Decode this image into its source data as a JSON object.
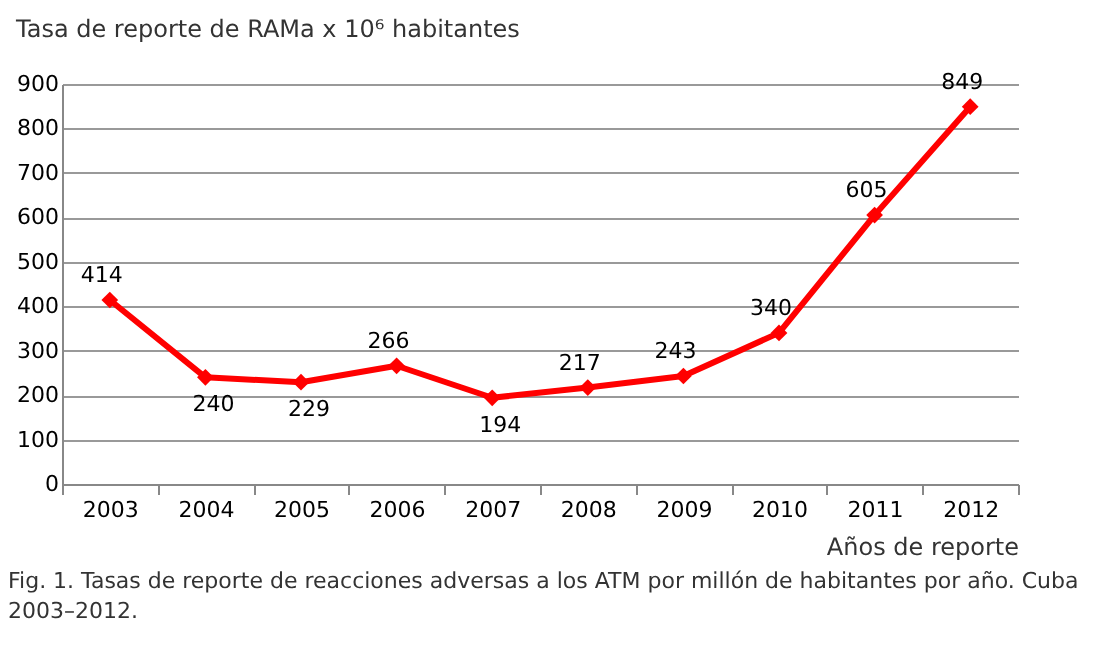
{
  "chart_data": {
    "type": "line",
    "ylabel": "Tasa de reporte de RAMa x 10⁶ habitantes",
    "xlabel": "Años de reporte",
    "categories": [
      "2003",
      "2004",
      "2005",
      "2006",
      "2007",
      "2008",
      "2009",
      "2010",
      "2011",
      "2012"
    ],
    "series": [
      {
        "color": "#ff0000",
        "values": [
          414,
          240,
          229,
          266,
          194,
          217,
          243,
          340,
          605,
          849
        ]
      }
    ],
    "ylim": [
      0,
      900
    ],
    "yticks": [
      0,
      100,
      200,
      300,
      400,
      500,
      600,
      700,
      800,
      900
    ],
    "grid": "y",
    "marker": "diamond",
    "line_style": "solid",
    "data_labels": true,
    "legend": false,
    "annotations": [
      "Fig. 1. Tasas de reporte de reacciones adversas a los ATM por millón de habitantes  por año.  Cuba 2003–2012."
    ]
  }
}
